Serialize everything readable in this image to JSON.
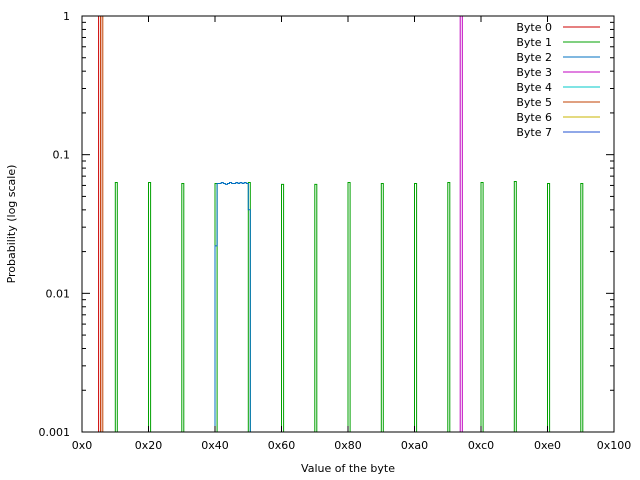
{
  "chart_data": {
    "type": "line",
    "xlabel": "Value of the byte",
    "ylabel": "Probability (log scale)",
    "xlim": [
      0,
      256
    ],
    "ylim": [
      0.001,
      1
    ],
    "y_scale": "log",
    "grid": false,
    "legend_position": "top-right",
    "x_ticks": [
      {
        "value": 0,
        "label": "0x0"
      },
      {
        "value": 32,
        "label": "0x20"
      },
      {
        "value": 64,
        "label": "0x40"
      },
      {
        "value": 96,
        "label": "0x60"
      },
      {
        "value": 128,
        "label": "0x80"
      },
      {
        "value": 160,
        "label": "0xa0"
      },
      {
        "value": 192,
        "label": "0xc0"
      },
      {
        "value": 224,
        "label": "0xe0"
      },
      {
        "value": 256,
        "label": "0x100"
      }
    ],
    "y_ticks": [
      {
        "value": 0.001,
        "label": "0.001"
      },
      {
        "value": 0.01,
        "label": "0.01"
      },
      {
        "value": 0.1,
        "label": "0.1"
      },
      {
        "value": 1,
        "label": "1"
      }
    ],
    "series": [
      {
        "name": "Byte 0",
        "color": "#cc0000",
        "points": [
          [
            8,
            1
          ]
        ]
      },
      {
        "name": "Byte 1",
        "color": "#00a000",
        "points": [
          [
            16,
            0.063
          ],
          [
            32,
            0.063
          ],
          [
            48,
            0.062
          ],
          [
            64,
            0.062
          ],
          [
            80,
            0.063
          ],
          [
            96,
            0.061
          ],
          [
            112,
            0.061
          ],
          [
            128,
            0.063
          ],
          [
            144,
            0.062
          ],
          [
            160,
            0.062
          ],
          [
            176,
            0.063
          ],
          [
            192,
            0.063
          ],
          [
            208,
            0.064
          ],
          [
            224,
            0.062
          ],
          [
            240,
            0.062
          ]
        ]
      },
      {
        "name": "Byte 2",
        "color": "#0070c0",
        "points": [
          [
            64,
            0.022
          ],
          [
            65,
            0.062
          ],
          [
            66,
            0.062
          ],
          [
            67,
            0.063
          ],
          [
            68,
            0.062
          ],
          [
            69,
            0.061
          ],
          [
            70,
            0.062
          ],
          [
            71,
            0.063
          ],
          [
            72,
            0.062
          ],
          [
            73,
            0.062
          ],
          [
            74,
            0.063
          ],
          [
            75,
            0.062
          ],
          [
            76,
            0.063
          ],
          [
            77,
            0.062
          ],
          [
            78,
            0.063
          ],
          [
            79,
            0.062
          ],
          [
            80,
            0.04
          ]
        ]
      },
      {
        "name": "Byte 3",
        "color": "#c000c0",
        "points": [
          [
            182,
            1
          ]
        ]
      },
      {
        "name": "Byte 4",
        "color": "#00c8c8",
        "points": []
      },
      {
        "name": "Byte 5",
        "color": "#c04000",
        "points": [
          [
            9,
            1
          ]
        ]
      },
      {
        "name": "Byte 6",
        "color": "#c8b400",
        "points": []
      },
      {
        "name": "Byte 7",
        "color": "#2050d0",
        "points": []
      }
    ]
  }
}
